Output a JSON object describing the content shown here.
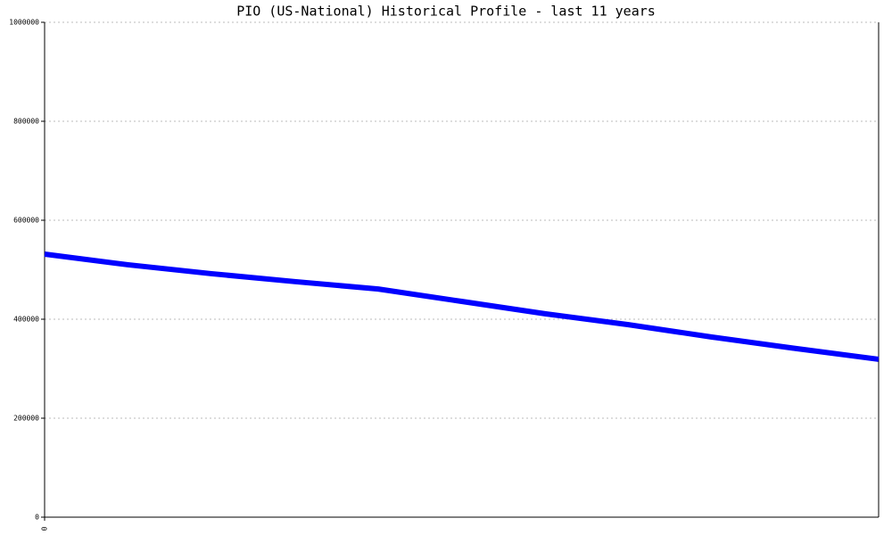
{
  "chart_data": {
    "type": "line",
    "title": "PIO (US-National) Historical Profile - last 11 years",
    "x": [
      0,
      1,
      2,
      3,
      4,
      5,
      6,
      7,
      8,
      9,
      10
    ],
    "series": [
      {
        "color": "#0000ff",
        "values": [
          531500,
          510000,
          492000,
          476000,
          461000,
          436000,
          411000,
          389000,
          364000,
          341000,
          319000
        ]
      }
    ],
    "xlim": [
      0,
      10
    ],
    "xticks": [
      0
    ],
    "ylim": [
      0,
      1000000
    ],
    "yticks": [
      0,
      200000,
      400000,
      600000,
      800000,
      1000000
    ],
    "grid": true
  }
}
